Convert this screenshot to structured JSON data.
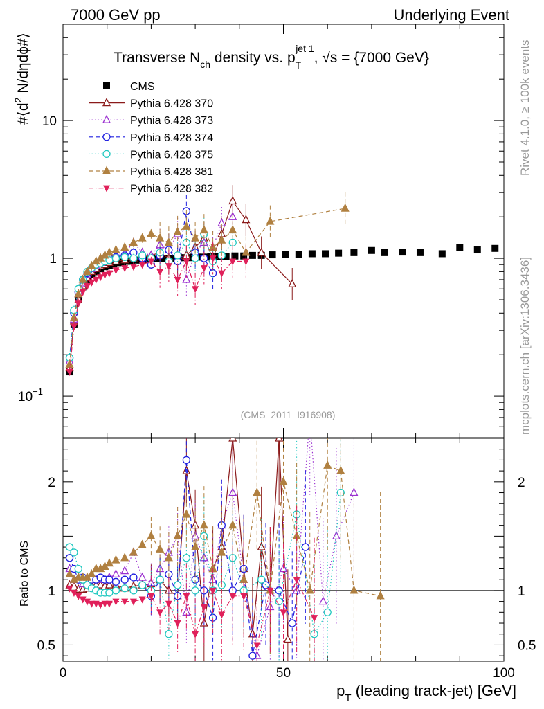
{
  "header": {
    "left": "7000 GeV pp",
    "right": "Underlying Event"
  },
  "side_labels": {
    "rivet": "Rivet 4.1.0, ≥ 100k events",
    "mcplots": "mcplots.cern.ch [arXiv:1306.3436]"
  },
  "colors": {
    "cms": "#000000",
    "p370": "#8b1a1a",
    "p373": "#9b30d0",
    "p374": "#2020e0",
    "p375": "#20c8c0",
    "p381": "#b08040",
    "p382": "#e0205a"
  },
  "chart_data": [
    {
      "type": "scatter",
      "panel": "main",
      "title": "Transverse N_ch density vs. p_T^jet 1, √s = {7000 GeV}",
      "title_parts": {
        "a": "Transverse N",
        "b": "ch",
        "c": " density vs. p",
        "d": "T",
        "e": "jet 1",
        "f": ", √s = {7000 GeV}"
      },
      "ylabel": "#⟨d² N/dηdϕ#⟩",
      "ylabel_parts": {
        "a": "#⟨d",
        "b": "2",
        "c": " N/dηdϕ#⟩"
      },
      "xlim": [
        0,
        100
      ],
      "ylim": [
        0.05,
        50
      ],
      "yscale": "log",
      "yticks": [
        {
          "value": 0.1,
          "label": "10",
          "sup": "−1"
        },
        {
          "value": 1,
          "label": "1",
          "sup": ""
        },
        {
          "value": 10,
          "label": "10",
          "sup": ""
        }
      ],
      "watermark": "(CMS_2011_I916908)",
      "legend_position": "top-left",
      "series": [
        {
          "name": "CMS",
          "key": "cms",
          "marker": "square-filled",
          "line": "none",
          "x": [
            1.5,
            2.5,
            3.5,
            4.5,
            5.5,
            6.5,
            7.5,
            8.5,
            9.5,
            10.5,
            11.5,
            12.5,
            13.5,
            14.5,
            15.5,
            16.5,
            17.5,
            18.5,
            19.5,
            20.5,
            21.5,
            22.5,
            23.5,
            24.5,
            25.5,
            26.5,
            27.5,
            28.5,
            29.5,
            30.5,
            31.5,
            32.5,
            33.5,
            34.5,
            35.5,
            37,
            39,
            41,
            43,
            45,
            47.5,
            50.5,
            53.5,
            56.5,
            59.5,
            62.5,
            66,
            70,
            73,
            77,
            81,
            86,
            90,
            94,
            98
          ],
          "y": [
            0.15,
            0.33,
            0.5,
            0.62,
            0.7,
            0.76,
            0.8,
            0.84,
            0.87,
            0.89,
            0.91,
            0.93,
            0.94,
            0.95,
            0.96,
            0.97,
            0.97,
            0.98,
            0.98,
            0.99,
            0.99,
            1.0,
            1.0,
            1.0,
            1.0,
            1.01,
            1.01,
            1.01,
            1.02,
            1.02,
            1.02,
            1.02,
            1.03,
            1.03,
            1.03,
            1.03,
            1.04,
            1.04,
            1.05,
            1.05,
            1.06,
            1.07,
            1.07,
            1.08,
            1.08,
            1.09,
            1.1,
            1.14,
            1.1,
            1.11,
            1.1,
            1.08,
            1.2,
            1.15,
            1.18
          ]
        },
        {
          "name": "Pythia 6.428 370",
          "key": "p370",
          "marker": "triangle-up-open",
          "line": "solid",
          "x": [
            1.5,
            2.5,
            3.5,
            4.5,
            5.5,
            6.5,
            7.5,
            8.5,
            9.5,
            10.5,
            12,
            14,
            16,
            18,
            20,
            22,
            24,
            26,
            28,
            30,
            32,
            34,
            36,
            38.5,
            41.5,
            45,
            52
          ],
          "y": [
            0.16,
            0.35,
            0.5,
            0.63,
            0.72,
            0.8,
            0.84,
            0.88,
            0.9,
            0.93,
            0.95,
            0.97,
            1.0,
            1.02,
            1.05,
            1.1,
            1.0,
            0.95,
            1.05,
            1.2,
            1.4,
            1.0,
            1.5,
            2.6,
            1.9,
            1.1,
            0.65
          ]
        },
        {
          "name": "Pythia 6.428 373",
          "key": "p373",
          "marker": "triangle-up-open",
          "line": "dotted",
          "x": [
            1.5,
            2.5,
            3.5,
            4.5,
            5.5,
            6.5,
            7.5,
            8.5,
            9.5,
            10.5,
            12,
            14,
            16,
            18,
            20,
            22,
            24,
            26,
            28,
            30,
            32,
            34,
            36,
            38.5
          ],
          "y": [
            0.18,
            0.36,
            0.55,
            0.66,
            0.76,
            0.84,
            0.88,
            0.93,
            0.96,
            1.0,
            1.05,
            1.1,
            1.3,
            1.1,
            1.05,
            1.25,
            1.15,
            1.5,
            0.7,
            1.1,
            1.3,
            1.2,
            1.8,
            2.0
          ]
        },
        {
          "name": "Pythia 6.428 374",
          "key": "p374",
          "marker": "circle-open",
          "line": "dashed",
          "x": [
            1.5,
            2.5,
            3.5,
            4.5,
            5.5,
            6.5,
            7.5,
            8.5,
            9.5,
            10.5,
            12,
            14,
            16,
            18,
            20,
            22,
            24,
            26,
            28,
            30,
            32,
            34
          ],
          "y": [
            0.19,
            0.4,
            0.57,
            0.7,
            0.78,
            0.85,
            0.9,
            0.95,
            0.98,
            1.0,
            1.02,
            1.05,
            1.1,
            1.0,
            0.9,
            1.05,
            1.15,
            0.95,
            2.2,
            1.1,
            1.0,
            0.78
          ]
        },
        {
          "name": "Pythia 6.428 375",
          "key": "p375",
          "marker": "circle-open",
          "line": "dotted",
          "x": [
            1.5,
            2.5,
            3.5,
            4.5,
            5.5,
            6.5,
            7.5,
            8.5,
            9.5,
            10.5,
            12,
            14,
            16,
            18,
            20,
            22,
            24,
            26,
            28,
            30,
            32,
            34,
            36,
            38.5
          ],
          "y": [
            0.19,
            0.42,
            0.6,
            0.7,
            0.8,
            0.85,
            0.9,
            0.92,
            0.95,
            0.97,
            1.0,
            1.02,
            1.0,
            1.05,
            1.0,
            1.1,
            0.95,
            1.05,
            1.3,
            1.0,
            1.5,
            0.95,
            1.05,
            1.3
          ]
        },
        {
          "name": "Pythia 6.428 381",
          "key": "p381",
          "marker": "triangle-up-filled",
          "line": "dashed",
          "x": [
            1.5,
            2.5,
            3.5,
            4.5,
            5.5,
            6.5,
            7.5,
            8.5,
            9.5,
            10.5,
            12,
            14,
            16,
            18,
            20,
            22,
            24,
            26,
            28,
            30,
            32,
            34,
            36,
            38.5,
            41.5,
            47,
            64
          ],
          "y": [
            0.17,
            0.37,
            0.55,
            0.7,
            0.8,
            0.88,
            0.95,
            1.0,
            1.05,
            1.1,
            1.15,
            1.2,
            1.3,
            1.4,
            1.5,
            1.4,
            1.3,
            1.55,
            1.7,
            1.4,
            1.6,
            1.2,
            1.35,
            1.6,
            1.1,
            1.85,
            2.3
          ]
        },
        {
          "name": "Pythia 6.428 382",
          "key": "p382",
          "marker": "triangle-down-filled",
          "line": "dashdot",
          "x": [
            1.5,
            2.5,
            3.5,
            4.5,
            5.5,
            6.5,
            7.5,
            8.5,
            9.5,
            10.5,
            12,
            14,
            16,
            18,
            20,
            22,
            24,
            26,
            28,
            30,
            32,
            34,
            36,
            38.5,
            41.5
          ],
          "y": [
            0.15,
            0.32,
            0.47,
            0.57,
            0.63,
            0.67,
            0.7,
            0.73,
            0.76,
            0.78,
            0.82,
            0.85,
            0.87,
            0.9,
            0.95,
            0.8,
            0.88,
            0.7,
            0.95,
            0.6,
            0.85,
            1.0,
            0.78,
            0.95,
            0.95
          ]
        }
      ]
    },
    {
      "type": "line",
      "panel": "ratio",
      "ylabel": "Ratio to CMS",
      "xlabel": "p_T (leading track-jet) [GeV]",
      "xlabel_parts": {
        "a": "p",
        "b": "T",
        "c": " (leading track-jet) [GeV]"
      },
      "xlim": [
        0,
        100
      ],
      "ylim": [
        0.35,
        2.4
      ],
      "xticks": [
        {
          "value": 0,
          "label": "0"
        },
        {
          "value": 50,
          "label": "50"
        },
        {
          "value": 100,
          "label": "100"
        }
      ],
      "yticks": [
        {
          "value": 0.5,
          "label": "0.5"
        },
        {
          "value": 1,
          "label": "1"
        },
        {
          "value": 2,
          "label": "2"
        }
      ],
      "reference_line": 1,
      "series": [
        {
          "name": "Pythia 6.428 370",
          "key": "p370",
          "x": [
            1.5,
            2.5,
            3.5,
            4.5,
            5.5,
            6.5,
            7.5,
            8.5,
            9.5,
            10.5,
            12,
            14,
            16,
            18,
            20,
            22,
            24,
            26,
            28,
            30,
            32,
            34,
            36,
            38.5,
            41,
            43,
            45,
            47,
            49,
            51
          ],
          "y": [
            1.05,
            1.04,
            1.01,
            1.01,
            1.02,
            1.04,
            1.05,
            1.05,
            1.04,
            1.05,
            1.05,
            1.02,
            1.04,
            1.05,
            1.06,
            1.1,
            1.0,
            0.95,
            2.1,
            1.6,
            0.7,
            1.2,
            1.4,
            2.4,
            1.2,
            0.6,
            1.4,
            1.0,
            2.4,
            0.55
          ]
        },
        {
          "name": "Pythia 6.428 373",
          "key": "p373",
          "x": [
            1.5,
            2.5,
            3.5,
            4.5,
            5.5,
            6.5,
            7.5,
            8.5,
            9.5,
            10.5,
            12,
            14,
            16,
            18,
            20,
            22,
            24,
            26,
            28,
            30,
            32,
            34,
            36,
            38.5,
            41,
            44,
            47,
            50,
            53,
            56,
            59,
            62,
            66
          ],
          "y": [
            1.2,
            1.1,
            1.1,
            1.06,
            1.09,
            1.1,
            1.1,
            1.1,
            1.1,
            1.12,
            1.15,
            1.18,
            1.35,
            1.12,
            1.07,
            1.2,
            1.35,
            1.5,
            0.8,
            1.5,
            1.3,
            1.1,
            1.6,
            1.9,
            1.1,
            0.4,
            0.85,
            1.2,
            1.0,
            2.6,
            0.9,
            1.5,
            1.9
          ]
        },
        {
          "name": "Pythia 6.428 374",
          "key": "p374",
          "x": [
            1.5,
            2.5,
            3.5,
            4.5,
            5.5,
            6.5,
            7.5,
            8.5,
            9.5,
            10.5,
            12,
            14,
            16,
            18,
            20,
            22,
            24,
            26,
            28,
            30,
            32,
            34,
            36,
            38.5,
            41,
            43,
            46,
            49,
            52,
            55
          ],
          "y": [
            1.3,
            1.2,
            1.1,
            1.12,
            1.1,
            1.1,
            1.1,
            1.12,
            1.1,
            1.1,
            1.08,
            1.1,
            1.12,
            1.05,
            0.95,
            1.1,
            1.15,
            0.95,
            2.2,
            1.1,
            1.0,
            0.75,
            1.6,
            1.0,
            1.2,
            0.4,
            1.05,
            1.0,
            0.7,
            1.4
          ]
        },
        {
          "name": "Pythia 6.428 375",
          "key": "p375",
          "x": [
            1.5,
            2.5,
            3.5,
            4.5,
            5.5,
            6.5,
            7.5,
            8.5,
            9.5,
            10.5,
            12,
            14,
            16,
            18,
            20,
            22,
            24,
            26,
            28,
            30,
            32,
            34,
            36,
            38.5,
            41,
            45,
            49,
            53,
            57,
            60,
            63
          ],
          "y": [
            1.4,
            1.35,
            1.2,
            1.1,
            1.05,
            1.02,
            1.0,
            0.98,
            0.98,
            0.98,
            1.0,
            1.02,
            1.0,
            1.05,
            1.0,
            1.1,
            0.6,
            1.05,
            1.3,
            1.0,
            1.5,
            1.0,
            1.05,
            1.3,
            1.0,
            1.1,
            0.9,
            1.7,
            0.6,
            0.8,
            1.9
          ]
        },
        {
          "name": "Pythia 6.428 381",
          "key": "p381",
          "x": [
            1.5,
            2.5,
            3.5,
            4.5,
            5.5,
            6.5,
            7.5,
            8.5,
            9.5,
            10.5,
            12,
            14,
            16,
            18,
            20,
            22,
            24,
            26,
            28,
            30,
            32,
            34,
            36,
            38.5,
            41,
            44,
            47,
            50,
            53,
            56,
            60,
            63,
            66,
            72
          ],
          "y": [
            1.15,
            1.1,
            1.12,
            1.12,
            1.12,
            1.15,
            1.2,
            1.2,
            1.22,
            1.25,
            1.28,
            1.3,
            1.35,
            1.42,
            1.5,
            1.38,
            1.3,
            1.5,
            1.7,
            1.4,
            1.6,
            1.2,
            1.35,
            1.6,
            1.1,
            1.9,
            1.0,
            2.0,
            1.5,
            1.0,
            2.15,
            2.1,
            1.0,
            0.95
          ]
        },
        {
          "name": "Pythia 6.428 382",
          "key": "p382",
          "x": [
            1.5,
            2.5,
            3.5,
            4.5,
            5.5,
            6.5,
            7.5,
            8.5,
            9.5,
            10.5,
            12,
            14,
            16,
            18,
            20,
            22,
            24,
            26,
            28,
            30,
            32,
            34,
            36,
            38.5,
            41,
            44,
            47,
            50,
            53,
            57
          ],
          "y": [
            1.02,
            0.98,
            0.95,
            0.92,
            0.9,
            0.88,
            0.88,
            0.87,
            0.88,
            0.88,
            0.9,
            0.9,
            0.9,
            0.92,
            0.95,
            0.8,
            0.88,
            0.7,
            0.95,
            0.6,
            0.85,
            1.0,
            0.78,
            0.95,
            0.95,
            0.5,
            1.0,
            0.8,
            1.1,
            0.75
          ]
        }
      ]
    }
  ]
}
